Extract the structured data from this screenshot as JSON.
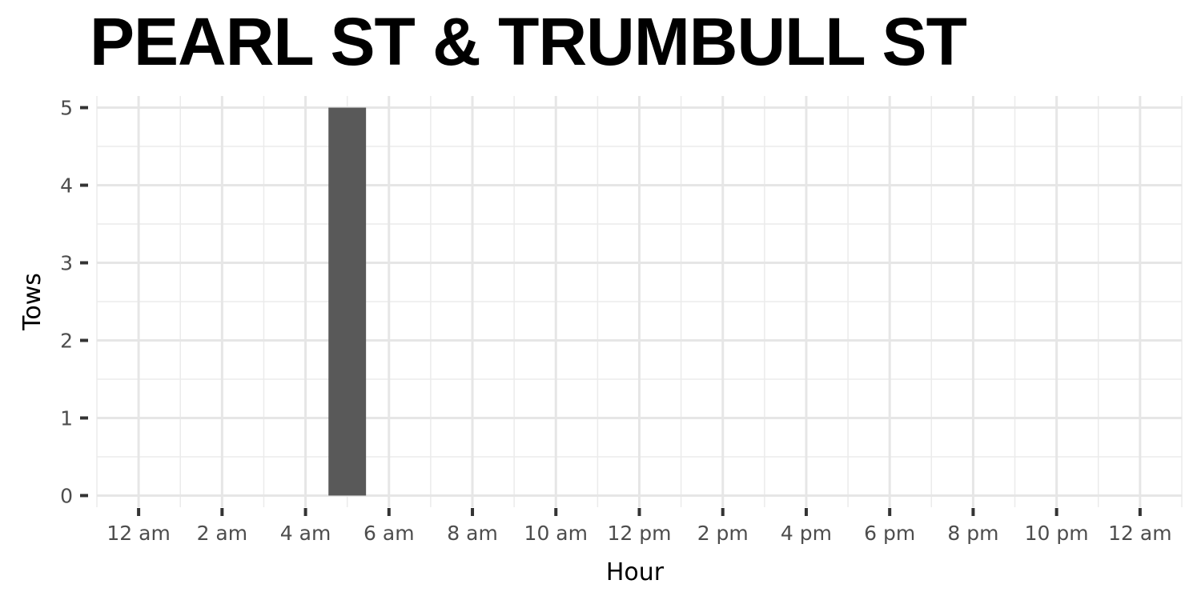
{
  "chart_data": {
    "type": "bar",
    "title": "PEARL ST & TRUMBULL ST",
    "xlabel": "Hour",
    "ylabel": "Tows",
    "x_tick_labels": [
      "12 am",
      "2 am",
      "4 am",
      "6 am",
      "8 am",
      "10 am",
      "12 pm",
      "2 pm",
      "4 pm",
      "6 pm",
      "8 pm",
      "10 pm",
      "12 am"
    ],
    "x_ticks": [
      0,
      2,
      4,
      6,
      8,
      10,
      12,
      14,
      16,
      18,
      20,
      22,
      24
    ],
    "y_ticks": [
      0,
      1,
      2,
      3,
      4,
      5
    ],
    "xlim": [
      -1,
      25
    ],
    "ylim": [
      -0.15,
      5.15
    ],
    "bars": [
      {
        "hour": 5,
        "value": 5
      }
    ],
    "bar_color": "#595959",
    "grid": true
  }
}
